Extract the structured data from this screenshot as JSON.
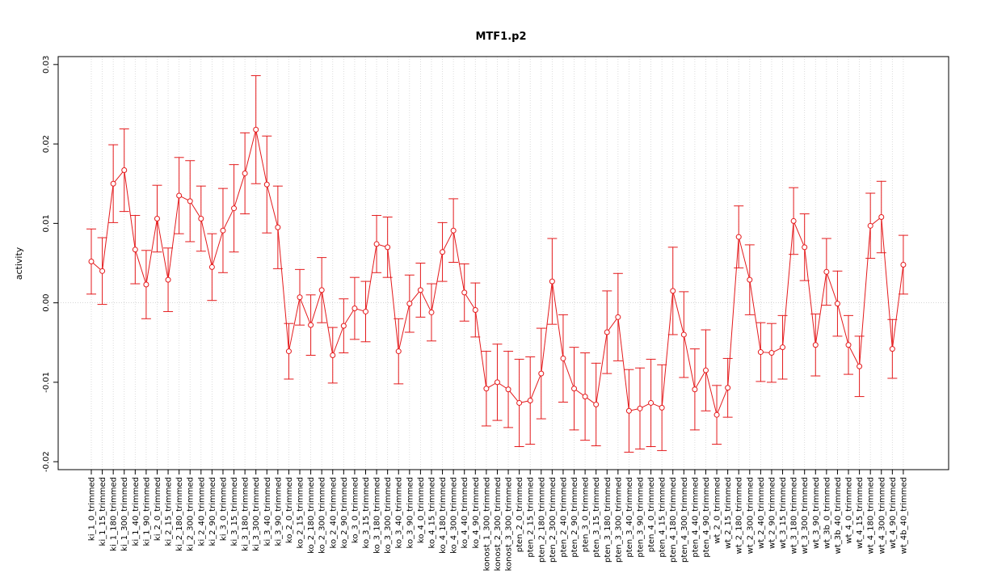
{
  "chart_data": {
    "type": "line",
    "title": "MTF1.p2",
    "xlabel": "",
    "ylabel": "activity",
    "ylim": [
      -0.021,
      0.031
    ],
    "yticks": [
      -0.02,
      -0.01,
      0.0,
      0.01,
      0.02,
      0.03
    ],
    "ytick_labels": [
      "-0.02",
      "-0.01",
      "0.00",
      "0.01",
      "0.02",
      "0.03"
    ],
    "grid": true,
    "color": "#e41a1c",
    "categories": [
      "ki_1_0_trimmed",
      "ki_1_15_trimmed",
      "ki_1_180_trimmed",
      "ki_1_300_trimmed",
      "ki_1_40_trimmed",
      "ki_1_90_trimmed",
      "ki_2_0_trimmed",
      "ki_2_15_trimmed",
      "ki_2_180_trimmed",
      "ki_2_300_trimmed",
      "ki_2_40_trimmed",
      "ki_2_90_trimmed",
      "ki_3_0_trimmed",
      "ki_3_15_trimmed",
      "ki_3_180_trimmed",
      "ki_3_300_trimmed",
      "ki_3_40_trimmed",
      "ki_3_90_trimmed",
      "ko_2_0_trimmed",
      "ko_2_15_trimmed",
      "ko_2_180_trimmed",
      "ko_2_300_trimmed",
      "ko_2_40_trimmed",
      "ko_2_90_trimmed",
      "ko_3_0_trimmed",
      "ko_3_15_trimmed",
      "ko_3_180_trimmed",
      "ko_3_300_trimmed",
      "ko_3_40_trimmed",
      "ko_3_90_trimmed",
      "ko_4_0_trimmed",
      "ko_4_15_trimmed",
      "ko_4_180_trimmed",
      "ko_4_300_trimmed",
      "ko_4_40_trimmed",
      "ko_4_90_trimmed",
      "konost_1_300_trimmed",
      "konost_2_300_trimmed",
      "konost_3_300_trimmed",
      "pten_2_0_trimmed",
      "pten_2_15_trimmed",
      "pten_2_180_trimmed",
      "pten_2_300_trimmed",
      "pten_2_40_trimmed",
      "pten_2_90_trimmed",
      "pten_3_0_trimmed",
      "pten_3_15_trimmed",
      "pten_3_180_trimmed",
      "pten_3_300_trimmed",
      "pten_3_40_trimmed",
      "pten_3_90_trimmed",
      "pten_4_0_trimmed",
      "pten_4_15_trimmed",
      "pten_4_180_trimmed",
      "pten_4_300_trimmed",
      "pten_4_40_trimmed",
      "pten_4_90_trimmed",
      "wt_2_0_trimmed",
      "wt_2_15_trimmed",
      "wt_2_180_trimmed",
      "wt_2_300_trimmed",
      "wt_2_40_trimmed",
      "wt_2_90_trimmed",
      "wt_3_15_trimmed",
      "wt_3_180_trimmed",
      "wt_3_300_trimmed",
      "wt_3_90_trimmed",
      "wt_3b_0_trimmed",
      "wt_3b_40_trimmed",
      "wt_4_0_trimmed",
      "wt_4_15_trimmed",
      "wt_4_180_trimmed",
      "wt_4_300_trimmed",
      "wt_4_90_trimmed",
      "wt_4b_40_trimmed"
    ],
    "values": [
      0.0052,
      0.004,
      0.015,
      0.0167,
      0.0067,
      0.0023,
      0.0106,
      0.0029,
      0.0135,
      0.0128,
      0.0106,
      0.0045,
      0.0091,
      0.0119,
      0.0163,
      0.0218,
      0.0149,
      0.0095,
      -0.0061,
      0.0007,
      -0.0028,
      0.0016,
      -0.0066,
      -0.0029,
      -0.0007,
      -0.0011,
      0.0074,
      0.007,
      -0.0061,
      -0.0001,
      0.0016,
      -0.0012,
      0.0064,
      0.0091,
      0.0013,
      -0.0009,
      -0.0108,
      -0.01,
      -0.0109,
      -0.0126,
      -0.0123,
      -0.0089,
      0.0027,
      -0.007,
      -0.0108,
      -0.0118,
      -0.0128,
      -0.0037,
      -0.0018,
      -0.0136,
      -0.0133,
      -0.0126,
      -0.0132,
      0.0015,
      -0.004,
      -0.0109,
      -0.0085,
      -0.0141,
      -0.0107,
      0.0083,
      0.0029,
      -0.0062,
      -0.0063,
      -0.0056,
      0.0103,
      0.007,
      -0.0053,
      0.0039,
      -0.0001,
      -0.0053,
      -0.008,
      0.0097,
      0.0108,
      -0.0058,
      0.0048
    ],
    "errors": [
      0.0041,
      0.0042,
      0.0049,
      0.0052,
      0.0043,
      0.0043,
      0.0042,
      0.004,
      0.0048,
      0.0051,
      0.0041,
      0.0042,
      0.0053,
      0.0055,
      0.0051,
      0.0068,
      0.0061,
      0.0052,
      0.0035,
      0.0035,
      0.0038,
      0.0041,
      0.0035,
      0.0034,
      0.0039,
      0.0038,
      0.0036,
      0.0038,
      0.0041,
      0.0036,
      0.0034,
      0.0036,
      0.0037,
      0.004,
      0.0036,
      0.0034,
      0.0047,
      0.0048,
      0.0048,
      0.0055,
      0.0055,
      0.0057,
      0.0054,
      0.0055,
      0.0052,
      0.0055,
      0.0052,
      0.0052,
      0.0055,
      0.0052,
      0.0051,
      0.0055,
      0.0054,
      0.0055,
      0.0054,
      0.0051,
      0.0051,
      0.0037,
      0.0037,
      0.0039,
      0.0044,
      0.0037,
      0.0037,
      0.004,
      0.0042,
      0.0042,
      0.0039,
      0.0042,
      0.0041,
      0.0037,
      0.0038,
      0.0041,
      0.0045,
      0.0037,
      0.0037
    ]
  }
}
